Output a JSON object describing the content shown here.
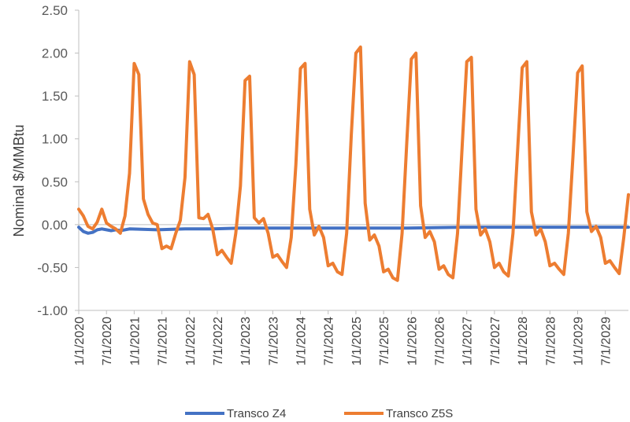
{
  "chart_data": {
    "type": "line",
    "title": "",
    "xlabel": "",
    "ylabel": "Nominal $/MMBtu",
    "ylim": [
      -1.0,
      2.5
    ],
    "yticks": [
      "-1.00",
      "-0.50",
      "0.00",
      "0.50",
      "1.00",
      "1.50",
      "2.00",
      "2.50"
    ],
    "xlim": [
      "2020-01",
      "2029-12"
    ],
    "categories": [
      "1/1/2020",
      "7/1/2020",
      "1/1/2021",
      "7/1/2021",
      "1/1/2022",
      "7/1/2022",
      "1/1/2023",
      "7/1/2023",
      "1/1/2024",
      "7/1/2024",
      "1/1/2025",
      "7/1/2025",
      "1/1/2026",
      "7/1/2026",
      "1/1/2027",
      "7/1/2027",
      "1/1/2028",
      "7/1/2028",
      "1/1/2029",
      "7/1/2029"
    ],
    "grid": false,
    "legend_position": "bottom",
    "series": [
      {
        "name": "Transco Z4",
        "color": "#4472C4",
        "points": [
          [
            "2020-01",
            -0.03
          ],
          [
            "2020-02",
            -0.08
          ],
          [
            "2020-03",
            -0.1
          ],
          [
            "2020-04",
            -0.09
          ],
          [
            "2020-05",
            -0.06
          ],
          [
            "2020-06",
            -0.05
          ],
          [
            "2020-07",
            -0.06
          ],
          [
            "2020-08",
            -0.07
          ],
          [
            "2020-09",
            -0.06
          ],
          [
            "2020-10",
            -0.07
          ],
          [
            "2020-12",
            -0.05
          ],
          [
            "2021-06",
            -0.06
          ],
          [
            "2021-12",
            -0.05
          ],
          [
            "2022-06",
            -0.05
          ],
          [
            "2022-12",
            -0.04
          ],
          [
            "2023-06",
            -0.04
          ],
          [
            "2023-12",
            -0.04
          ],
          [
            "2024-12",
            -0.04
          ],
          [
            "2025-12",
            -0.04
          ],
          [
            "2026-12",
            -0.03
          ],
          [
            "2027-12",
            -0.03
          ],
          [
            "2028-12",
            -0.03
          ],
          [
            "2029-12",
            -0.03
          ]
        ]
      },
      {
        "name": "Transco Z5S",
        "color": "#ED7D31",
        "points": [
          [
            "2020-01",
            0.18
          ],
          [
            "2020-02",
            0.1
          ],
          [
            "2020-03",
            -0.02
          ],
          [
            "2020-04",
            -0.05
          ],
          [
            "2020-05",
            0.03
          ],
          [
            "2020-06",
            0.18
          ],
          [
            "2020-07",
            0.02
          ],
          [
            "2020-08",
            -0.02
          ],
          [
            "2020-09",
            -0.05
          ],
          [
            "2020-10",
            -0.1
          ],
          [
            "2020-11",
            0.1
          ],
          [
            "2020-12",
            0.6
          ],
          [
            "2021-01",
            1.88
          ],
          [
            "2021-02",
            1.75
          ],
          [
            "2021-03",
            0.3
          ],
          [
            "2021-04",
            0.12
          ],
          [
            "2021-05",
            0.02
          ],
          [
            "2021-06",
            0.0
          ],
          [
            "2021-07",
            -0.28
          ],
          [
            "2021-08",
            -0.25
          ],
          [
            "2021-09",
            -0.28
          ],
          [
            "2021-10",
            -0.1
          ],
          [
            "2021-11",
            0.05
          ],
          [
            "2021-12",
            0.55
          ],
          [
            "2022-01",
            1.9
          ],
          [
            "2022-02",
            1.75
          ],
          [
            "2022-03",
            0.08
          ],
          [
            "2022-04",
            0.07
          ],
          [
            "2022-05",
            0.12
          ],
          [
            "2022-06",
            -0.05
          ],
          [
            "2022-07",
            -0.35
          ],
          [
            "2022-08",
            -0.3
          ],
          [
            "2022-09",
            -0.38
          ],
          [
            "2022-10",
            -0.45
          ],
          [
            "2022-11",
            -0.1
          ],
          [
            "2022-12",
            0.45
          ],
          [
            "2023-01",
            1.68
          ],
          [
            "2023-02",
            1.73
          ],
          [
            "2023-03",
            0.08
          ],
          [
            "2023-04",
            0.02
          ],
          [
            "2023-05",
            0.07
          ],
          [
            "2023-06",
            -0.1
          ],
          [
            "2023-07",
            -0.38
          ],
          [
            "2023-08",
            -0.35
          ],
          [
            "2023-09",
            -0.43
          ],
          [
            "2023-10",
            -0.5
          ],
          [
            "2023-11",
            -0.15
          ],
          [
            "2023-12",
            0.7
          ],
          [
            "2024-01",
            1.82
          ],
          [
            "2024-02",
            1.88
          ],
          [
            "2024-03",
            0.18
          ],
          [
            "2024-04",
            -0.12
          ],
          [
            "2024-05",
            -0.02
          ],
          [
            "2024-06",
            -0.15
          ],
          [
            "2024-07",
            -0.48
          ],
          [
            "2024-08",
            -0.45
          ],
          [
            "2024-09",
            -0.55
          ],
          [
            "2024-10",
            -0.58
          ],
          [
            "2024-11",
            -0.1
          ],
          [
            "2024-12",
            1.05
          ],
          [
            "2025-01",
            2.0
          ],
          [
            "2025-02",
            2.07
          ],
          [
            "2025-03",
            0.25
          ],
          [
            "2025-04",
            -0.18
          ],
          [
            "2025-05",
            -0.12
          ],
          [
            "2025-06",
            -0.25
          ],
          [
            "2025-07",
            -0.55
          ],
          [
            "2025-08",
            -0.52
          ],
          [
            "2025-09",
            -0.62
          ],
          [
            "2025-10",
            -0.65
          ],
          [
            "2025-11",
            -0.1
          ],
          [
            "2025-12",
            0.95
          ],
          [
            "2026-01",
            1.93
          ],
          [
            "2026-02",
            2.0
          ],
          [
            "2026-03",
            0.22
          ],
          [
            "2026-04",
            -0.15
          ],
          [
            "2026-05",
            -0.08
          ],
          [
            "2026-06",
            -0.2
          ],
          [
            "2026-07",
            -0.52
          ],
          [
            "2026-08",
            -0.48
          ],
          [
            "2026-09",
            -0.58
          ],
          [
            "2026-10",
            -0.62
          ],
          [
            "2026-11",
            -0.1
          ],
          [
            "2026-12",
            0.9
          ],
          [
            "2027-01",
            1.9
          ],
          [
            "2027-02",
            1.95
          ],
          [
            "2027-03",
            0.18
          ],
          [
            "2027-04",
            -0.12
          ],
          [
            "2027-05",
            -0.05
          ],
          [
            "2027-06",
            -0.2
          ],
          [
            "2027-07",
            -0.5
          ],
          [
            "2027-08",
            -0.45
          ],
          [
            "2027-09",
            -0.55
          ],
          [
            "2027-10",
            -0.6
          ],
          [
            "2027-11",
            -0.1
          ],
          [
            "2027-12",
            0.85
          ],
          [
            "2028-01",
            1.83
          ],
          [
            "2028-02",
            1.9
          ],
          [
            "2028-03",
            0.15
          ],
          [
            "2028-04",
            -0.12
          ],
          [
            "2028-05",
            -0.05
          ],
          [
            "2028-06",
            -0.2
          ],
          [
            "2028-07",
            -0.48
          ],
          [
            "2028-08",
            -0.45
          ],
          [
            "2028-09",
            -0.52
          ],
          [
            "2028-10",
            -0.58
          ],
          [
            "2028-11",
            -0.1
          ],
          [
            "2028-12",
            0.8
          ],
          [
            "2029-01",
            1.77
          ],
          [
            "2029-02",
            1.85
          ],
          [
            "2029-03",
            0.15
          ],
          [
            "2029-04",
            -0.08
          ],
          [
            "2029-05",
            -0.02
          ],
          [
            "2029-06",
            -0.15
          ],
          [
            "2029-07",
            -0.45
          ],
          [
            "2029-08",
            -0.42
          ],
          [
            "2029-09",
            -0.5
          ],
          [
            "2029-10",
            -0.57
          ],
          [
            "2029-11",
            -0.15
          ],
          [
            "2029-12",
            0.35
          ]
        ]
      }
    ]
  }
}
